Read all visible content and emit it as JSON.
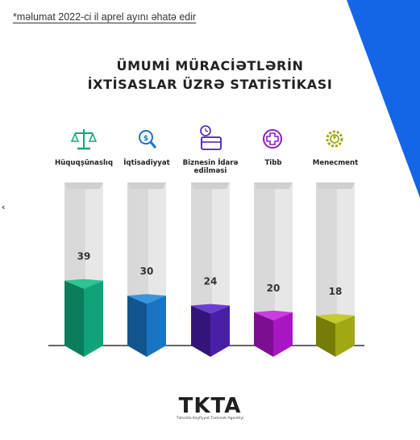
{
  "note": "*məlumat 2022-ci il aprel ayını əhatə edir",
  "title_line1": "ÜMUMİ MÜRACİƏTLƏRİN",
  "title_line2": "İXTİSASLAR ÜZRƏ STATİSTİKASI",
  "stray_mark": "‹",
  "colors": {
    "accent": "#1565e8",
    "panel": "#e7e7e7",
    "baseline": "#333333"
  },
  "chart_data": {
    "type": "bar",
    "categories": [
      "Hüquqşünaslıq",
      "İqtisadiyyat",
      "Biznesin İdarə edilməsi",
      "Tibb",
      "Menecment"
    ],
    "category_lines": [
      [
        "Hüquqşünaslıq"
      ],
      [
        "İqtisadiyyat"
      ],
      [
        "Biznesin İdarə",
        "edilməsi"
      ],
      [
        "Tibb"
      ],
      [
        "Menecment"
      ]
    ],
    "values": [
      39,
      30,
      24,
      20,
      18
    ],
    "icons": [
      "scales-icon",
      "finance-magnifier-icon",
      "briefcase-clock-icon",
      "medical-cross-icon",
      "gear-people-icon"
    ],
    "bar_colors": [
      {
        "front": "#10a37a",
        "side": "#0b7d5c",
        "top": "#2ec493"
      },
      {
        "front": "#1a74c2",
        "side": "#11558f",
        "top": "#3a95dd"
      },
      {
        "front": "#4a1fa8",
        "side": "#33157a",
        "top": "#6a3fd0"
      },
      {
        "front": "#a816c4",
        "side": "#7b0e91",
        "top": "#c83ee0"
      },
      {
        "front": "#a0a812",
        "side": "#767c0a",
        "top": "#c3cb30"
      }
    ],
    "ylim": [
      0,
      100
    ],
    "title": "ÜMUMİ MÜRACİƏTLƏRİN İXTİSASLAR ÜZRƏ STATİSTİKASI",
    "xlabel": "",
    "ylabel": ""
  },
  "logo": {
    "name": "TKTA",
    "tagline": "Təhsildə Keyfiyyət Təminatı Agentliyi"
  }
}
